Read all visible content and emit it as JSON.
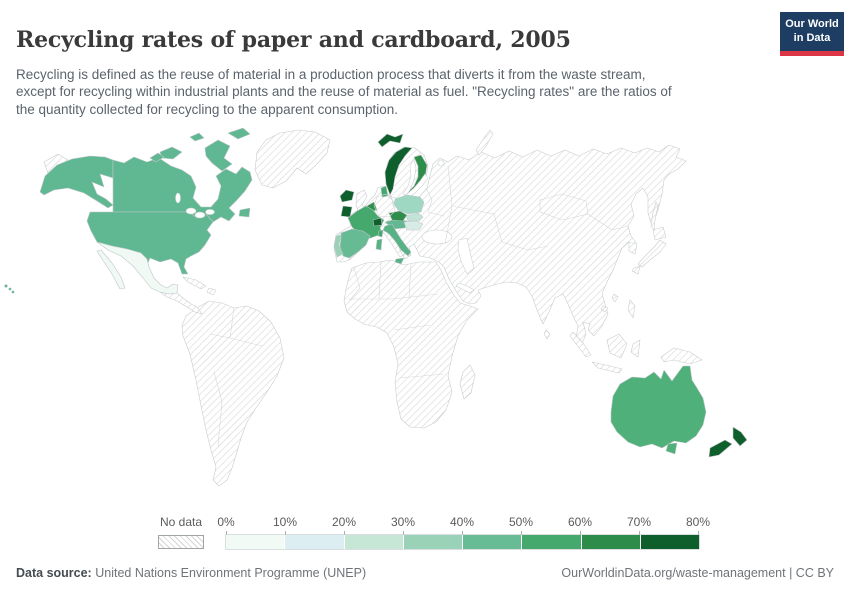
{
  "header": {
    "title": "Recycling rates of paper and cardboard, 2005",
    "subtitle": "Recycling is defined as the reuse of material in a production process that diverts it from the waste stream,\nexcept for recycling within industrial plants and the reuse of material as fuel. \"Recycling rates\" are the ratios of\nthe quantity collected for recycling to the apparent consumption.",
    "logo": {
      "line1": "Our World",
      "line2": "in Data",
      "bg_color": "#1d3d63",
      "stripe_color": "#dc3545"
    }
  },
  "legend": {
    "no_data_label": "No data",
    "no_data_hatch_color": "#d4d4d4",
    "tick_labels": [
      "0%",
      "10%",
      "20%",
      "30%",
      "40%",
      "50%",
      "60%",
      "70%",
      "80%"
    ],
    "bucket_colors": [
      "#f2faf6",
      "#dceef2",
      "#c7e7d6",
      "#9ad2b8",
      "#67bb95",
      "#45a86c",
      "#2d8c49",
      "#0e5f2c"
    ]
  },
  "footer": {
    "source_label": "Data source:",
    "source_value": "United Nations Environment Programme (UNEP)",
    "rights": "OurWorldinData.org/waste-management | CC BY"
  },
  "map_colors": {
    "usa": "#5fb891",
    "canada": "#5fb891",
    "mexico": "#f1f9f4",
    "iceland": "#0f5f2c",
    "ireland": "#0f5f2c",
    "norway": "#0f5f2c",
    "svalbard": "#0f5f2c",
    "finland": "#2e8d4a",
    "denmark": "#45a86c",
    "benelux": "#2e8d4a",
    "france": "#45a86c",
    "switzerland": "#0f5f2c",
    "austria": "#63b893",
    "czechia": "#2e8d4a",
    "poland": "#9fd8c2",
    "slovakia": "#c2e4d8",
    "hungary": "#d7ece7",
    "portugal": "#99d2b6",
    "spain": "#66bb95",
    "italy": "#57b286",
    "australia": "#4fb07a",
    "new_zealand": "#0f5f2c"
  },
  "chart_data": {
    "type": "choropleth_map",
    "title": "Recycling rates of paper and cardboard, 2005",
    "unit": "%",
    "legend_buckets": [
      "0-10%",
      "10-20%",
      "20-30%",
      "30-40%",
      "40-50%",
      "50-60%",
      "60-70%",
      "70-80%"
    ],
    "legend_range": [
      0,
      80
    ],
    "countries": [
      {
        "name": "Canada",
        "value_bucket": "40-50%"
      },
      {
        "name": "United States",
        "value_bucket": "40-50%"
      },
      {
        "name": "Mexico",
        "value_bucket": "0-10%"
      },
      {
        "name": "Iceland",
        "value_bucket": "70-80%"
      },
      {
        "name": "Ireland",
        "value_bucket": "70-80%"
      },
      {
        "name": "Norway",
        "value_bucket": "70-80%"
      },
      {
        "name": "Finland",
        "value_bucket": "60-70%"
      },
      {
        "name": "Denmark",
        "value_bucket": "50-60%"
      },
      {
        "name": "Belgium-Netherlands",
        "value_bucket": "60-70%"
      },
      {
        "name": "France",
        "value_bucket": "50-60%"
      },
      {
        "name": "Switzerland",
        "value_bucket": "70-80%"
      },
      {
        "name": "Austria",
        "value_bucket": "40-50%"
      },
      {
        "name": "Czechia",
        "value_bucket": "60-70%"
      },
      {
        "name": "Poland",
        "value_bucket": "30-40%"
      },
      {
        "name": "Slovakia",
        "value_bucket": "10-20%"
      },
      {
        "name": "Hungary",
        "value_bucket": "10-20%"
      },
      {
        "name": "Portugal",
        "value_bucket": "30-40%"
      },
      {
        "name": "Spain",
        "value_bucket": "40-50%"
      },
      {
        "name": "Italy",
        "value_bucket": "50-60%"
      },
      {
        "name": "Australia",
        "value_bucket": "50-60%"
      },
      {
        "name": "New Zealand",
        "value_bucket": "70-80%"
      }
    ],
    "no_data_note": "All other countries are shown with gray diagonal hatching (No data)"
  }
}
